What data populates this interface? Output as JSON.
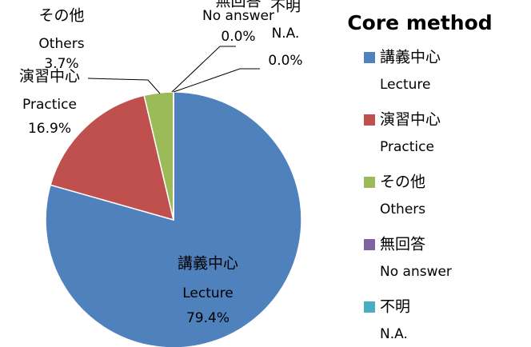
{
  "chart_data": {
    "type": "pie",
    "title": "Core method",
    "categories": [
      [
        "講義中心",
        "Lecture"
      ],
      [
        "演習中心",
        "Practice"
      ],
      [
        "その他",
        "Others"
      ],
      [
        "無回答",
        "No answer"
      ],
      [
        "不明",
        "N.A."
      ]
    ],
    "values": [
      79.4,
      16.9,
      3.7,
      0.0,
      0.0
    ],
    "value_labels": [
      "79.4%",
      "16.9%",
      "3.7%",
      "0.0%",
      "0.0%"
    ],
    "colors": [
      "#4f81bd",
      "#c0504d",
      "#9bbb59",
      "#8064a2",
      "#4bacc6"
    ],
    "legend": "right"
  }
}
